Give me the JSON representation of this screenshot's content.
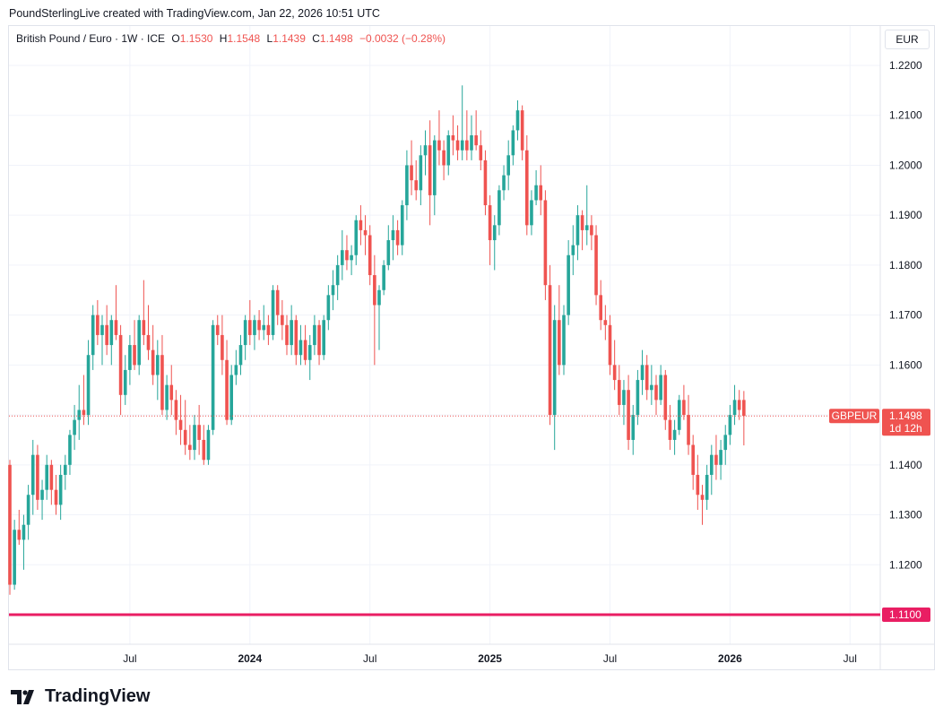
{
  "attribution": "PoundSterlingLive created with TradingView.com, Jan 22, 2026 10:51 UTC",
  "legend": {
    "symbol": "British Pound / Euro · 1W · ICE",
    "open_label": "O",
    "open": "1.1530",
    "high_label": "H",
    "high": "1.1548",
    "low_label": "L",
    "low": "1.1439",
    "close_label": "C",
    "close": "1.1498",
    "change": "−0.0032 (−0.28%)"
  },
  "currency": "EUR",
  "brand": "TradingView",
  "colors": {
    "up": "#26a69a",
    "down": "#ef5350",
    "support": "#e91e63",
    "grid": "#f0f3fa"
  },
  "chart_data": {
    "type": "candlestick",
    "ylim": [
      1.11,
      1.225
    ],
    "yticks": [
      "1.1100",
      "1.1200",
      "1.1300",
      "1.1400",
      "1.1500",
      "1.1600",
      "1.1700",
      "1.1800",
      "1.1900",
      "1.2000",
      "1.2100",
      "1.2200"
    ],
    "xticks": [
      {
        "label": "Jul",
        "week": 26,
        "bold": false
      },
      {
        "label": "2024",
        "week": 52,
        "bold": true
      },
      {
        "label": "Jul",
        "week": 78,
        "bold": false
      },
      {
        "label": "2025",
        "week": 104,
        "bold": true
      },
      {
        "label": "Jul",
        "week": 130,
        "bold": false
      },
      {
        "label": "2026",
        "week": 156,
        "bold": true
      },
      {
        "label": "Jul",
        "week": 182,
        "bold": false
      }
    ],
    "last_price": {
      "symbol": "GBPEUR",
      "value": 1.1498,
      "label": "1.1498",
      "countdown": "1d 12h"
    },
    "horizontal_line": {
      "value": 1.11,
      "label": "1.1100"
    },
    "candles": [
      [
        1.14,
        1.141,
        1.114,
        1.116
      ],
      [
        1.116,
        1.129,
        1.115,
        1.127
      ],
      [
        1.127,
        1.131,
        1.124,
        1.125
      ],
      [
        1.125,
        1.13,
        1.119,
        1.128
      ],
      [
        1.128,
        1.136,
        1.125,
        1.134
      ],
      [
        1.134,
        1.145,
        1.13,
        1.142
      ],
      [
        1.142,
        1.144,
        1.131,
        1.133
      ],
      [
        1.133,
        1.137,
        1.129,
        1.135
      ],
      [
        1.135,
        1.142,
        1.133,
        1.14
      ],
      [
        1.14,
        1.141,
        1.132,
        1.135
      ],
      [
        1.135,
        1.138,
        1.13,
        1.132
      ],
      [
        1.132,
        1.14,
        1.129,
        1.138
      ],
      [
        1.138,
        1.142,
        1.135,
        1.14
      ],
      [
        1.14,
        1.147,
        1.138,
        1.146
      ],
      [
        1.146,
        1.152,
        1.143,
        1.149
      ],
      [
        1.149,
        1.156,
        1.145,
        1.151
      ],
      [
        1.151,
        1.158,
        1.148,
        1.15
      ],
      [
        1.15,
        1.165,
        1.148,
        1.162
      ],
      [
        1.162,
        1.172,
        1.159,
        1.17
      ],
      [
        1.17,
        1.173,
        1.164,
        1.166
      ],
      [
        1.166,
        1.17,
        1.16,
        1.168
      ],
      [
        1.168,
        1.172,
        1.162,
        1.164
      ],
      [
        1.164,
        1.17,
        1.16,
        1.169
      ],
      [
        1.169,
        1.176,
        1.165,
        1.166
      ],
      [
        1.166,
        1.168,
        1.15,
        1.154
      ],
      [
        1.154,
        1.162,
        1.152,
        1.159
      ],
      [
        1.159,
        1.166,
        1.156,
        1.164
      ],
      [
        1.164,
        1.169,
        1.159,
        1.16
      ],
      [
        1.16,
        1.17,
        1.158,
        1.169
      ],
      [
        1.169,
        1.177,
        1.164,
        1.166
      ],
      [
        1.166,
        1.172,
        1.161,
        1.163
      ],
      [
        1.163,
        1.168,
        1.156,
        1.158
      ],
      [
        1.158,
        1.165,
        1.153,
        1.162
      ],
      [
        1.162,
        1.166,
        1.15,
        1.151
      ],
      [
        1.151,
        1.158,
        1.149,
        1.156
      ],
      [
        1.156,
        1.16,
        1.15,
        1.153
      ],
      [
        1.153,
        1.155,
        1.146,
        1.149
      ],
      [
        1.149,
        1.154,
        1.144,
        1.147
      ],
      [
        1.147,
        1.153,
        1.142,
        1.144
      ],
      [
        1.144,
        1.148,
        1.141,
        1.143
      ],
      [
        1.143,
        1.15,
        1.141,
        1.148
      ],
      [
        1.148,
        1.152,
        1.142,
        1.145
      ],
      [
        1.145,
        1.148,
        1.14,
        1.141
      ],
      [
        1.141,
        1.148,
        1.14,
        1.147
      ],
      [
        1.147,
        1.169,
        1.146,
        1.168
      ],
      [
        1.168,
        1.17,
        1.164,
        1.166
      ],
      [
        1.166,
        1.17,
        1.158,
        1.161
      ],
      [
        1.161,
        1.165,
        1.148,
        1.149
      ],
      [
        1.149,
        1.16,
        1.148,
        1.158
      ],
      [
        1.158,
        1.163,
        1.156,
        1.16
      ],
      [
        1.16,
        1.166,
        1.158,
        1.164
      ],
      [
        1.164,
        1.17,
        1.161,
        1.169
      ],
      [
        1.169,
        1.173,
        1.164,
        1.166
      ],
      [
        1.166,
        1.17,
        1.163,
        1.169
      ],
      [
        1.169,
        1.171,
        1.165,
        1.167
      ],
      [
        1.167,
        1.172,
        1.165,
        1.168
      ],
      [
        1.168,
        1.17,
        1.164,
        1.166
      ],
      [
        1.166,
        1.176,
        1.165,
        1.175
      ],
      [
        1.175,
        1.176,
        1.168,
        1.17
      ],
      [
        1.17,
        1.173,
        1.165,
        1.168
      ],
      [
        1.168,
        1.17,
        1.162,
        1.164
      ],
      [
        1.164,
        1.172,
        1.162,
        1.169
      ],
      [
        1.169,
        1.17,
        1.16,
        1.162
      ],
      [
        1.162,
        1.168,
        1.16,
        1.165
      ],
      [
        1.165,
        1.168,
        1.16,
        1.161
      ],
      [
        1.161,
        1.166,
        1.157,
        1.164
      ],
      [
        1.164,
        1.17,
        1.162,
        1.168
      ],
      [
        1.168,
        1.169,
        1.16,
        1.162
      ],
      [
        1.162,
        1.17,
        1.161,
        1.169
      ],
      [
        1.169,
        1.176,
        1.167,
        1.174
      ],
      [
        1.174,
        1.179,
        1.171,
        1.176
      ],
      [
        1.176,
        1.182,
        1.173,
        1.18
      ],
      [
        1.18,
        1.187,
        1.177,
        1.183
      ],
      [
        1.183,
        1.186,
        1.179,
        1.181
      ],
      [
        1.181,
        1.184,
        1.178,
        1.182
      ],
      [
        1.182,
        1.19,
        1.18,
        1.189
      ],
      [
        1.189,
        1.192,
        1.184,
        1.187
      ],
      [
        1.187,
        1.19,
        1.182,
        1.186
      ],
      [
        1.186,
        1.188,
        1.176,
        1.178
      ],
      [
        1.178,
        1.182,
        1.16,
        1.172
      ],
      [
        1.172,
        1.176,
        1.163,
        1.175
      ],
      [
        1.175,
        1.181,
        1.174,
        1.18
      ],
      [
        1.18,
        1.188,
        1.179,
        1.185
      ],
      [
        1.185,
        1.19,
        1.181,
        1.187
      ],
      [
        1.187,
        1.189,
        1.182,
        1.184
      ],
      [
        1.184,
        1.193,
        1.182,
        1.192
      ],
      [
        1.192,
        1.203,
        1.189,
        1.2
      ],
      [
        1.2,
        1.205,
        1.194,
        1.197
      ],
      [
        1.197,
        1.201,
        1.193,
        1.195
      ],
      [
        1.195,
        1.204,
        1.192,
        1.202
      ],
      [
        1.202,
        1.207,
        1.198,
        1.204
      ],
      [
        1.204,
        1.209,
        1.188,
        1.194
      ],
      [
        1.194,
        1.206,
        1.19,
        1.205
      ],
      [
        1.205,
        1.211,
        1.2,
        1.203
      ],
      [
        1.203,
        1.205,
        1.197,
        1.2
      ],
      [
        1.2,
        1.207,
        1.198,
        1.206
      ],
      [
        1.206,
        1.21,
        1.202,
        1.205
      ],
      [
        1.205,
        1.208,
        1.201,
        1.203
      ],
      [
        1.203,
        1.216,
        1.201,
        1.205
      ],
      [
        1.205,
        1.211,
        1.201,
        1.203
      ],
      [
        1.203,
        1.21,
        1.201,
        1.206
      ],
      [
        1.206,
        1.211,
        1.203,
        1.204
      ],
      [
        1.204,
        1.207,
        1.199,
        1.201
      ],
      [
        1.201,
        1.203,
        1.19,
        1.192
      ],
      [
        1.192,
        1.194,
        1.18,
        1.185
      ],
      [
        1.185,
        1.19,
        1.179,
        1.188
      ],
      [
        1.188,
        1.196,
        1.186,
        1.195
      ],
      [
        1.195,
        1.2,
        1.193,
        1.198
      ],
      [
        1.198,
        1.205,
        1.195,
        1.202
      ],
      [
        1.202,
        1.208,
        1.2,
        1.207
      ],
      [
        1.207,
        1.213,
        1.205,
        1.211
      ],
      [
        1.211,
        1.212,
        1.201,
        1.203
      ],
      [
        1.203,
        1.206,
        1.186,
        1.188
      ],
      [
        1.188,
        1.195,
        1.186,
        1.193
      ],
      [
        1.193,
        1.199,
        1.192,
        1.196
      ],
      [
        1.196,
        1.2,
        1.19,
        1.193
      ],
      [
        1.193,
        1.195,
        1.173,
        1.176
      ],
      [
        1.176,
        1.18,
        1.148,
        1.15
      ],
      [
        1.15,
        1.172,
        1.143,
        1.169
      ],
      [
        1.169,
        1.176,
        1.158,
        1.16
      ],
      [
        1.16,
        1.172,
        1.158,
        1.17
      ],
      [
        1.17,
        1.185,
        1.168,
        1.182
      ],
      [
        1.182,
        1.188,
        1.178,
        1.184
      ],
      [
        1.184,
        1.192,
        1.181,
        1.19
      ],
      [
        1.19,
        1.191,
        1.183,
        1.187
      ],
      [
        1.187,
        1.196,
        1.184,
        1.188
      ],
      [
        1.188,
        1.19,
        1.183,
        1.186
      ],
      [
        1.186,
        1.188,
        1.172,
        1.174
      ],
      [
        1.174,
        1.177,
        1.167,
        1.169
      ],
      [
        1.169,
        1.172,
        1.165,
        1.168
      ],
      [
        1.168,
        1.17,
        1.158,
        1.16
      ],
      [
        1.16,
        1.165,
        1.155,
        1.157
      ],
      [
        1.157,
        1.16,
        1.15,
        1.152
      ],
      [
        1.152,
        1.157,
        1.148,
        1.155
      ],
      [
        1.155,
        1.158,
        1.143,
        1.145
      ],
      [
        1.145,
        1.152,
        1.142,
        1.15
      ],
      [
        1.15,
        1.159,
        1.148,
        1.157
      ],
      [
        1.157,
        1.163,
        1.154,
        1.16
      ],
      [
        1.16,
        1.162,
        1.153,
        1.155
      ],
      [
        1.155,
        1.16,
        1.152,
        1.156
      ],
      [
        1.156,
        1.158,
        1.15,
        1.153
      ],
      [
        1.153,
        1.16,
        1.152,
        1.158
      ],
      [
        1.158,
        1.159,
        1.147,
        1.149
      ],
      [
        1.149,
        1.152,
        1.143,
        1.145
      ],
      [
        1.145,
        1.149,
        1.142,
        1.147
      ],
      [
        1.147,
        1.154,
        1.146,
        1.153
      ],
      [
        1.153,
        1.156,
        1.149,
        1.15
      ],
      [
        1.15,
        1.154,
        1.142,
        1.144
      ],
      [
        1.144,
        1.146,
        1.135,
        1.138
      ],
      [
        1.138,
        1.142,
        1.131,
        1.134
      ],
      [
        1.134,
        1.136,
        1.128,
        1.133
      ],
      [
        1.133,
        1.14,
        1.131,
        1.138
      ],
      [
        1.138,
        1.144,
        1.134,
        1.142
      ],
      [
        1.142,
        1.146,
        1.137,
        1.14
      ],
      [
        1.14,
        1.145,
        1.137,
        1.143
      ],
      [
        1.143,
        1.148,
        1.14,
        1.146
      ],
      [
        1.146,
        1.152,
        1.144,
        1.15
      ],
      [
        1.15,
        1.156,
        1.148,
        1.153
      ],
      [
        1.153,
        1.155,
        1.149,
        1.151
      ],
      [
        1.153,
        1.1548,
        1.1439,
        1.1498
      ]
    ]
  }
}
